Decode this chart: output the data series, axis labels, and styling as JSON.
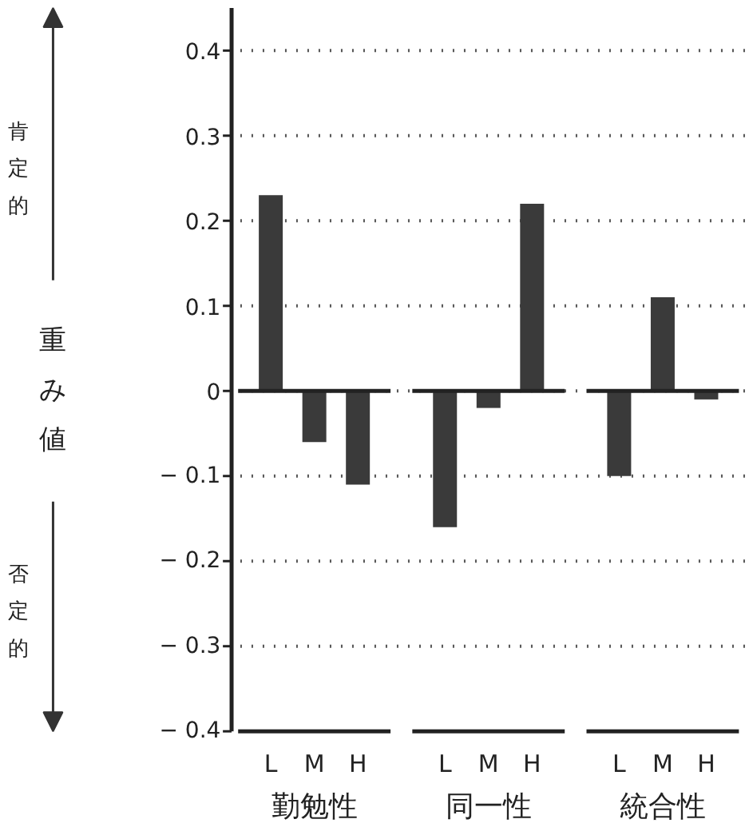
{
  "chart_data": {
    "type": "bar",
    "ylabel": "重み値",
    "categories": [
      "L",
      "M",
      "H",
      "L",
      "M",
      "H",
      "L",
      "M",
      "H"
    ],
    "values": [
      0.23,
      -0.06,
      -0.11,
      -0.16,
      -0.02,
      0.22,
      -0.1,
      0.11,
      -0.01
    ],
    "color": "#3a3a3a",
    "ylim": [
      -0.4,
      0.45
    ],
    "yticks": [
      {
        "value": -0.4,
        "label": "− 0.4"
      },
      {
        "value": -0.3,
        "label": "− 0.3"
      },
      {
        "value": -0.2,
        "label": "− 0.2"
      },
      {
        "value": -0.1,
        "label": "− 0.1"
      },
      0,
      0.1,
      0.2,
      0.3,
      0.4
    ],
    "grid": "y",
    "annotations": [
      "勤勉性",
      "同一性",
      "統合性",
      "肯定的",
      "否定的"
    ]
  }
}
